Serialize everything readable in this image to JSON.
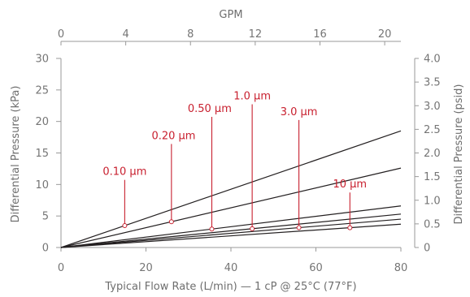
{
  "chart_data": {
    "type": "line",
    "title": "",
    "xlabel": "Typical Flow Rate (L/min) — 1 cP @ 25°C (77°F)",
    "ylabel": "Differential Pressure (kPa)",
    "y2label": "Differential Pressure (psid)",
    "x2label": "GPM",
    "xlim": [
      0,
      80
    ],
    "ylim": [
      0,
      30
    ],
    "x2lim": [
      0,
      21
    ],
    "y2lim": [
      0,
      4.0
    ],
    "xticks": [
      "0",
      "20",
      "40",
      "60",
      "80"
    ],
    "yticks": [
      "0",
      "5",
      "10",
      "15",
      "20",
      "25",
      "30"
    ],
    "x2ticks": [
      "0",
      "4",
      "8",
      "12",
      "16",
      "20"
    ],
    "y2ticks": [
      "0",
      "0.5",
      "1.0",
      "1.5",
      "2.0",
      "2.5",
      "3.0",
      "3.5",
      "4.0"
    ],
    "grid": false,
    "series": [
      {
        "name": "0.10 µm",
        "x": [
          0,
          80
        ],
        "y": [
          0,
          18.5
        ],
        "marker_x": 15,
        "label_x": 15,
        "label_y": 11.5
      },
      {
        "name": "0.20 µm",
        "x": [
          0,
          80
        ],
        "y": [
          0,
          12.6
        ],
        "marker_x": 26,
        "label_x": 26.5,
        "label_y": 17.2
      },
      {
        "name": "0.50 µm",
        "x": [
          0,
          80
        ],
        "y": [
          0,
          6.6
        ],
        "marker_x": 35.5,
        "label_x": 35,
        "label_y": 21.5
      },
      {
        "name": "1.0 µm",
        "x": [
          0,
          80
        ],
        "y": [
          0,
          5.3
        ],
        "marker_x": 45,
        "label_x": 45,
        "label_y": 23.5
      },
      {
        "name": "3.0 µm",
        "x": [
          0,
          80
        ],
        "y": [
          0,
          4.5
        ],
        "marker_x": 56,
        "label_x": 56,
        "label_y": 21
      },
      {
        "name": "10 µm",
        "x": [
          0,
          80
        ],
        "y": [
          0,
          3.7
        ],
        "marker_x": 68,
        "label_x": 68,
        "label_y": 9.5
      }
    ],
    "colors": {
      "lines": "#231f20",
      "annotations": "#c8202f",
      "axes": "#9a9a9a",
      "text": "#757575"
    }
  }
}
